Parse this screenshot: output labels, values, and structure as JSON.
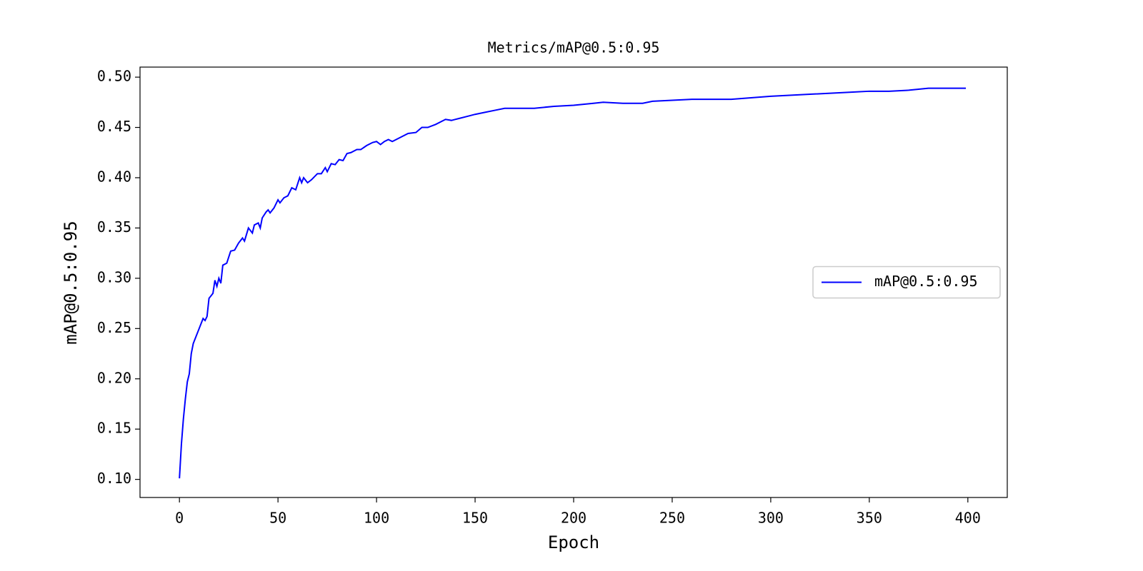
{
  "chart_data": {
    "type": "line",
    "title": "Metrics/mAP@0.5:0.95",
    "x_label": "Epoch",
    "y_label": "mAP@0.5:0.95",
    "x": [
      0,
      1,
      2,
      3,
      4,
      5,
      6,
      7,
      8,
      10,
      12,
      13,
      14,
      15,
      17,
      18,
      19,
      20,
      21,
      22,
      24,
      26,
      28,
      30,
      32,
      33,
      35,
      37,
      38,
      40,
      41,
      42,
      44,
      45,
      46,
      48,
      50,
      51,
      53,
      55,
      57,
      59,
      61,
      62,
      63,
      65,
      67,
      70,
      72,
      74,
      75,
      77,
      79,
      81,
      83,
      85,
      87,
      90,
      92,
      95,
      98,
      100,
      102,
      104,
      106,
      108,
      112,
      116,
      120,
      123,
      126,
      130,
      135,
      138,
      142,
      146,
      150,
      155,
      160,
      165,
      170,
      180,
      190,
      200,
      210,
      215,
      225,
      235,
      240,
      250,
      260,
      280,
      300,
      320,
      340,
      350,
      360,
      370,
      380,
      390,
      399
    ],
    "series": [
      {
        "name": "mAP@0.5:0.95",
        "color": "#0000ff",
        "values": [
          0.101,
          0.135,
          0.16,
          0.18,
          0.197,
          0.205,
          0.225,
          0.235,
          0.24,
          0.25,
          0.26,
          0.258,
          0.262,
          0.28,
          0.285,
          0.298,
          0.292,
          0.3,
          0.295,
          0.313,
          0.315,
          0.327,
          0.328,
          0.335,
          0.34,
          0.337,
          0.35,
          0.345,
          0.353,
          0.355,
          0.35,
          0.36,
          0.366,
          0.368,
          0.365,
          0.37,
          0.378,
          0.375,
          0.38,
          0.382,
          0.39,
          0.388,
          0.4,
          0.395,
          0.4,
          0.395,
          0.398,
          0.404,
          0.404,
          0.41,
          0.406,
          0.414,
          0.413,
          0.418,
          0.417,
          0.424,
          0.425,
          0.428,
          0.428,
          0.432,
          0.435,
          0.436,
          0.433,
          0.436,
          0.438,
          0.436,
          0.44,
          0.444,
          0.445,
          0.45,
          0.45,
          0.453,
          0.458,
          0.457,
          0.459,
          0.461,
          0.463,
          0.465,
          0.467,
          0.469,
          0.469,
          0.469,
          0.471,
          0.472,
          0.474,
          0.475,
          0.474,
          0.474,
          0.476,
          0.477,
          0.478,
          0.478,
          0.481,
          0.483,
          0.485,
          0.486,
          0.486,
          0.487,
          0.489,
          0.489,
          0.489
        ]
      }
    ],
    "xlim": [
      -20,
      420
    ],
    "xticks": [
      0,
      50,
      100,
      150,
      200,
      250,
      300,
      350,
      400
    ],
    "ylim": [
      0.082,
      0.51
    ],
    "yticks": [
      {
        "value": 0.1,
        "label": "0.10"
      },
      0.15,
      {
        "value": 0.2,
        "label": "0.20"
      },
      0.25,
      {
        "value": 0.3,
        "label": "0.30"
      },
      0.35,
      {
        "value": 0.4,
        "label": "0.40"
      },
      0.45,
      {
        "value": 0.5,
        "label": "0.50"
      }
    ],
    "grid": false,
    "legend": "center right"
  }
}
